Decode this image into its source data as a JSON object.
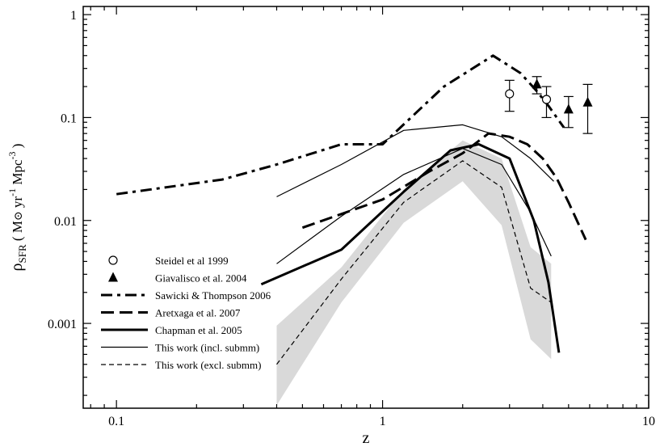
{
  "chart_data": {
    "type": "line",
    "xscale": "log",
    "yscale": "log",
    "xlim": [
      0.075,
      10
    ],
    "ylim": [
      0.00015,
      1.2
    ],
    "xlabel": "z",
    "ylabel": {
      "rho": "ρ",
      "sub": "SFR",
      "open": " ( M",
      "sun": "⊙",
      "yr": " yr",
      "yr_exp": "-1",
      "mpc": " Mpc",
      "mpc_exp": "-3",
      "close": " )"
    },
    "xticks": [
      {
        "value": 0.1,
        "label": "0.1"
      },
      {
        "value": 1,
        "label": "1"
      },
      {
        "value": 10,
        "label": "10"
      }
    ],
    "yticks": [
      {
        "value": 0.001,
        "label": "0.001"
      },
      {
        "value": 0.01,
        "label": "0.01"
      },
      {
        "value": 0.1,
        "label": "0.1"
      },
      {
        "value": 1,
        "label": "1"
      }
    ],
    "shaded_band": {
      "name": "This work uncertainty",
      "upper": [
        [
          0.4,
          0.00095
        ],
        [
          0.7,
          0.0035
        ],
        [
          1.2,
          0.02
        ],
        [
          2.0,
          0.06
        ],
        [
          2.8,
          0.04
        ],
        [
          3.6,
          0.0055
        ],
        [
          4.3,
          0.0038
        ]
      ],
      "lower": [
        [
          4.3,
          0.00045
        ],
        [
          3.6,
          0.0007
        ],
        [
          2.8,
          0.009
        ],
        [
          2.0,
          0.024
        ],
        [
          1.2,
          0.0095
        ],
        [
          0.7,
          0.0016
        ],
        [
          0.4,
          0.00016
        ]
      ]
    },
    "series": [
      {
        "name": "Sawicki & Thompson 2006",
        "style": "dashdot",
        "width": 3,
        "x": [
          0.1,
          0.25,
          0.4,
          0.7,
          1.0,
          1.7,
          2.6,
          3.3,
          3.8,
          4.2,
          4.8
        ],
        "y": [
          0.018,
          0.025,
          0.035,
          0.055,
          0.055,
          0.2,
          0.4,
          0.27,
          0.18,
          0.13,
          0.08
        ]
      },
      {
        "name": "Aretxaga et al. 2007",
        "style": "dashed",
        "width": 3,
        "x": [
          0.5,
          1.0,
          1.5,
          2.0,
          2.5,
          3.0,
          3.5,
          4.0,
          4.5,
          5.0,
          5.8
        ],
        "y": [
          0.0085,
          0.016,
          0.03,
          0.045,
          0.07,
          0.065,
          0.055,
          0.04,
          0.026,
          0.015,
          0.0065
        ]
      },
      {
        "name": "Chapman et al. 2005",
        "style": "solid",
        "width": 3,
        "x": [
          0.35,
          0.7,
          1.2,
          1.8,
          2.3,
          3.0,
          3.7,
          4.2,
          4.6
        ],
        "y": [
          0.0024,
          0.0052,
          0.019,
          0.048,
          0.055,
          0.04,
          0.01,
          0.0025,
          0.00052
        ]
      },
      {
        "name": "This work (incl. submm) upper",
        "style": "solid",
        "width": 1.2,
        "x": [
          0.4,
          0.7,
          1.2,
          2.0,
          2.8,
          3.6,
          4.4
        ],
        "y": [
          0.017,
          0.035,
          0.075,
          0.085,
          0.065,
          0.04,
          0.024
        ]
      },
      {
        "name": "This work (incl. submm) middle",
        "style": "solid",
        "width": 1.2,
        "x": [
          0.4,
          0.7,
          1.2,
          2.0,
          2.8,
          3.6,
          4.3
        ],
        "y": [
          0.0038,
          0.011,
          0.028,
          0.05,
          0.035,
          0.012,
          0.0045
        ]
      },
      {
        "name": "This work (excl. submm)",
        "style": "thindash",
        "width": 1.2,
        "x": [
          0.4,
          0.7,
          1.2,
          2.0,
          2.8,
          3.6,
          4.3
        ],
        "y": [
          0.0004,
          0.0027,
          0.015,
          0.038,
          0.021,
          0.0022,
          0.0016
        ]
      }
    ],
    "points": [
      {
        "name": "Steidel et al 1999",
        "marker": "circle",
        "x": [
          3.0,
          4.13
        ],
        "y": [
          0.17,
          0.15
        ],
        "yerr_low": [
          0.115,
          0.1
        ],
        "yerr_high": [
          0.23,
          0.2
        ]
      },
      {
        "name": "Giavalisco et al. 2004",
        "marker": "triangle",
        "x": [
          3.8,
          5.0,
          5.9
        ],
        "y": [
          0.21,
          0.12,
          0.14
        ],
        "yerr_low": [
          0.17,
          0.08,
          0.07
        ],
        "yerr_high": [
          0.25,
          0.16,
          0.21
        ]
      }
    ],
    "legend": {
      "position": "bottom-left",
      "entries": [
        {
          "label": "Steidel et al 1999",
          "kind": "circle"
        },
        {
          "label": "Giavalisco et al. 2004",
          "kind": "triangle"
        },
        {
          "label": "Sawicki & Thompson 2006",
          "kind": "dashdot"
        },
        {
          "label": "Aretxaga et al. 2007",
          "kind": "dashed"
        },
        {
          "label": "Chapman et al. 2005",
          "kind": "thick"
        },
        {
          "label": "This work (incl. submm)",
          "kind": "thin"
        },
        {
          "label": "This work (excl. submm)",
          "kind": "thindash"
        }
      ]
    }
  }
}
